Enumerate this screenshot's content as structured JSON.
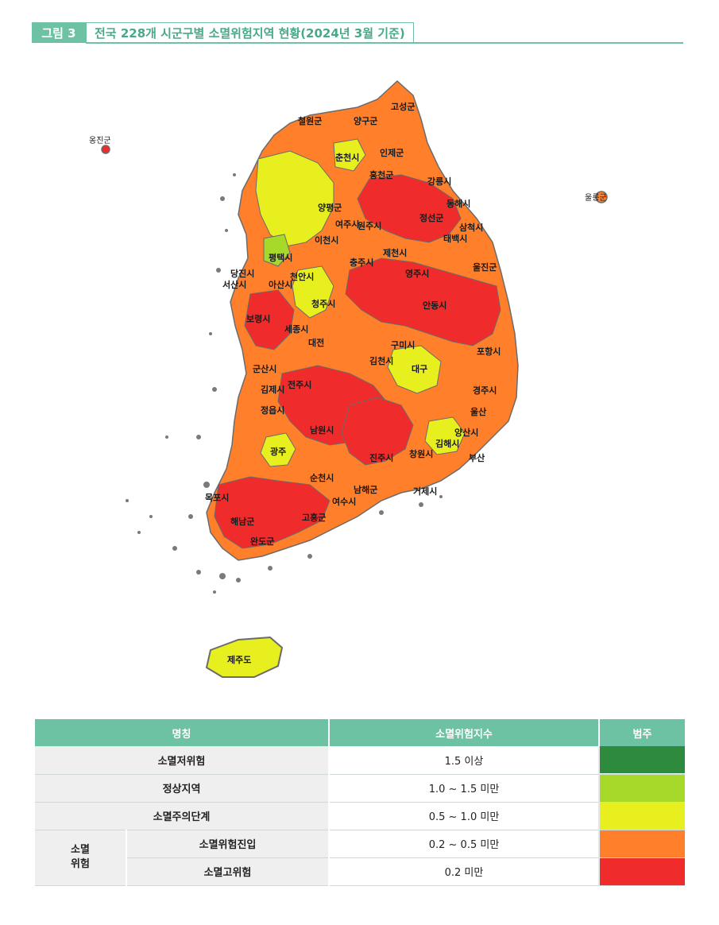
{
  "figure": {
    "number": "그림 3",
    "title": "전국 228개 시군구별 소멸위험지역 현황(2024년 3월 기준)"
  },
  "map": {
    "labels": {
      "ulleung": "울릉군",
      "ongjin": "옹진군",
      "jeju": "제주도",
      "cheorwon": "철원군",
      "yanggu": "양구군",
      "goseong": "고성군",
      "inje": "인제군",
      "chuncheon": "춘천시",
      "hongcheon": "홍천군",
      "gangneung": "강릉시",
      "donghae": "동해시",
      "samcheok": "삼척시",
      "jeongseon": "정선군",
      "taebaek": "태백시",
      "yangpyeong": "양평군",
      "wonju": "원주시",
      "chungju": "충주시",
      "jecheon": "제천시",
      "andong": "안동시",
      "yeongju": "영주시",
      "uljin": "울진군",
      "pohang": "포항시",
      "gyeongju": "경주시",
      "daegu": "대구",
      "gumi": "구미시",
      "gimcheon": "김천시",
      "cheongju": "청주시",
      "dangjin": "당진시",
      "seosan": "서산시",
      "boryeong": "보령시",
      "gunsan": "군산시",
      "jeonju": "전주시",
      "gimje": "김제시",
      "jeongeup": "정읍시",
      "namwon": "남원시",
      "gwangju": "광주",
      "mokpo": "목포시",
      "suncheon": "순천시",
      "yeosu": "여수시",
      "jinju": "진주시",
      "changwon": "창원시",
      "gimhae": "김해시",
      "yangsan": "양산시",
      "ulsan": "울산",
      "busan": "부산",
      "geoje": "거제시",
      "namhae": "남해군",
      "haenam": "해남군",
      "wando": "완도군",
      "goheung": "고흥군",
      "sejong": "세종시",
      "daejeon": "대전",
      "cheonan": "천안시",
      "asan": "아산시",
      "pyeongtaek": "평택시",
      "icheon": "이천시",
      "yeoju": "여주시"
    },
    "colors": {
      "very_low": "#2e8b3e",
      "normal": "#a6d92a",
      "caution": "#e8ef1f",
      "entry": "#ff7f2a",
      "high": "#f02b2b",
      "outline": "#6b6b6b",
      "island": "#7a7a7a"
    }
  },
  "legend": {
    "headers": [
      "명칭",
      "소멸위험지수",
      "범주"
    ],
    "group_label": "소멸\n위험",
    "rows": [
      {
        "name": "소멸저위험",
        "index": "1.5 이상",
        "color": "#2e8b3e"
      },
      {
        "name": "정상지역",
        "index": "1.0 ~ 1.5 미만",
        "color": "#a6d92a"
      },
      {
        "name": "소멸주의단계",
        "index": "0.5 ~ 1.0 미만",
        "color": "#e8ef1f"
      },
      {
        "name": "소멸위험진입",
        "index": "0.2 ~ 0.5 미만",
        "color": "#ff7f2a"
      },
      {
        "name": "소멸고위험",
        "index": "0.2 미만",
        "color": "#f02b2b"
      }
    ]
  }
}
